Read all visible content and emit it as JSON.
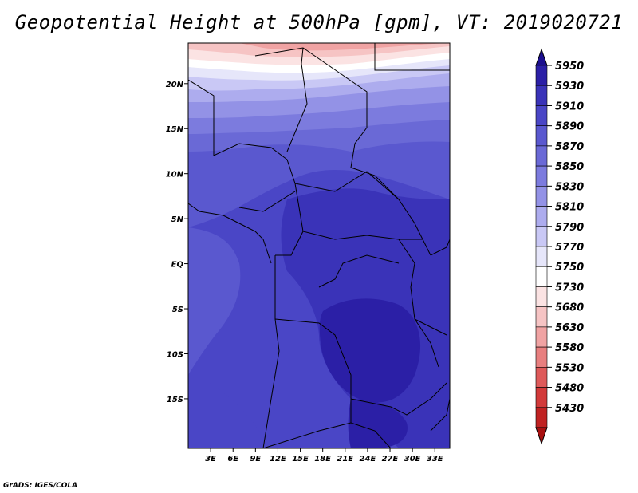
{
  "title": "Geopotential Height at 500hPa [gpm], VT: 2019020721",
  "credit": "GrADS: IGES/COLA",
  "chart_data": {
    "type": "heatmap",
    "title": "Geopotential Height at 500hPa [gpm], VT: 2019020721",
    "x_ticks": [
      "3E",
      "6E",
      "9E",
      "12E",
      "15E",
      "18E",
      "21E",
      "24E",
      "27E",
      "30E",
      "33E"
    ],
    "y_ticks": [
      "20N",
      "15N",
      "10N",
      "5N",
      "EQ",
      "5S",
      "10S",
      "15S"
    ],
    "colorbar": {
      "levels": [
        "5950",
        "5930",
        "5910",
        "5890",
        "5870",
        "5850",
        "5830",
        "5810",
        "5790",
        "5770",
        "5750",
        "5730",
        "5680",
        "5630",
        "5580",
        "5530",
        "5480",
        "5430"
      ],
      "colors": [
        "#1c0f8f",
        "#2b1fa6",
        "#3a33b8",
        "#4a46c6",
        "#5a58cf",
        "#6a69d6",
        "#7c7bde",
        "#9392e6",
        "#adacee",
        "#c9c8f5",
        "#e6e6fa",
        "#ffffff",
        "#fbe3e3",
        "#f6c4c4",
        "#f0a3a3",
        "#e87f7f",
        "#de5a5a",
        "#d23a3a",
        "#c02222",
        "#a81010"
      ]
    }
  }
}
